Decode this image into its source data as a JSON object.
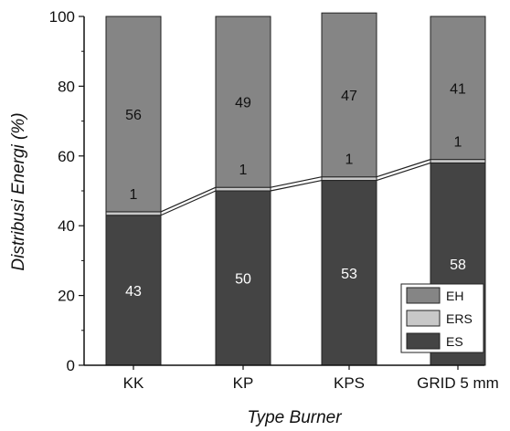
{
  "chart_data": {
    "type": "bar",
    "stacked": true,
    "categories": [
      "KK",
      "KP",
      "KPS",
      "GRID 5 mm"
    ],
    "series": [
      {
        "name": "ES",
        "values": [
          43,
          50,
          53,
          58
        ],
        "labels": [
          "43",
          "50",
          "53",
          "58"
        ],
        "color": "#444444",
        "label_color": "#ffffff"
      },
      {
        "name": "ERS",
        "values": [
          1,
          1,
          1,
          1
        ],
        "labels": [
          "1",
          "1",
          "1",
          "1"
        ],
        "color": "#c8c8c8",
        "label_color": "#111111"
      },
      {
        "name": "EH",
        "values": [
          56,
          49,
          47,
          41
        ],
        "labels": [
          "56",
          "49",
          "47",
          "41"
        ],
        "color": "#858585",
        "label_color": "#111111"
      }
    ],
    "legend_order": [
      "EH",
      "ERS",
      "ES"
    ],
    "xlabel": "Type Burner",
    "ylabel": "Distribusi Energi (%)",
    "ylim": [
      0,
      100
    ],
    "yticks": [
      "0",
      "20",
      "40",
      "60",
      "80",
      "100"
    ],
    "connector_lines": true,
    "grid": false,
    "legend_position": "bottom-right"
  }
}
